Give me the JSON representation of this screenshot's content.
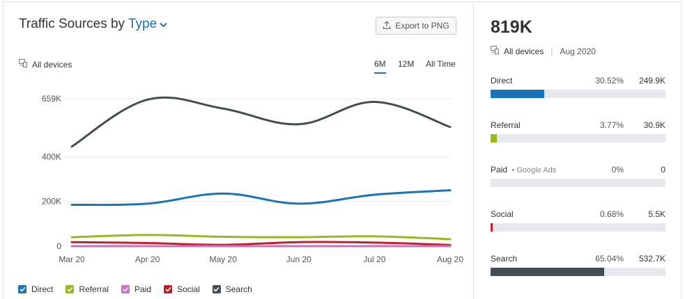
{
  "header": {
    "title": "Traffic Sources by",
    "type_select": "Type",
    "export_label": "Export to PNG",
    "devices_label": "All devices",
    "periods": [
      "6M",
      "12M",
      "All Time"
    ],
    "active_period": "6M"
  },
  "legend": [
    {
      "name": "Direct",
      "color": "#1a73b8"
    },
    {
      "name": "Referral",
      "color": "#97b81f"
    },
    {
      "name": "Paid",
      "color": "#c573c6"
    },
    {
      "name": "Social",
      "color": "#c0202a"
    },
    {
      "name": "Search",
      "color": "#434e53"
    }
  ],
  "chart_data": {
    "type": "line",
    "x": [
      "Mar 20",
      "Apr 20",
      "May 20",
      "Jun 20",
      "Jul 20",
      "Aug 20"
    ],
    "y_ticks": [
      "0",
      "200K",
      "400K",
      "659K"
    ],
    "y_tick_values": [
      0,
      200000,
      400000,
      659000
    ],
    "ylim": [
      0,
      659000
    ],
    "grid": true,
    "legend_position": "bottom",
    "series": [
      {
        "name": "Search",
        "color": "#434e53",
        "values": [
          445000,
          655000,
          615000,
          545000,
          645000,
          532700
        ]
      },
      {
        "name": "Direct",
        "color": "#1a73b8",
        "values": [
          185000,
          190000,
          235000,
          190000,
          230000,
          249900
        ]
      },
      {
        "name": "Referral",
        "color": "#97b81f",
        "values": [
          40000,
          50000,
          42000,
          40000,
          44000,
          30900
        ]
      },
      {
        "name": "Social",
        "color": "#c0202a",
        "values": [
          18000,
          14000,
          6000,
          18000,
          16000,
          5500
        ]
      },
      {
        "name": "Paid",
        "color": "#c573c6",
        "values": [
          0,
          0,
          0,
          0,
          0,
          0
        ]
      }
    ]
  },
  "summary": {
    "total": "819K",
    "devices_label": "All devices",
    "date": "Aug 2020",
    "rows": [
      {
        "name": "Direct",
        "sub": "",
        "pct": "30.52%",
        "value": "249.9K",
        "share": 0.3052,
        "color": "#1a73b8"
      },
      {
        "name": "Referral",
        "sub": "",
        "pct": "3.77%",
        "value": "30.9K",
        "share": 0.0377,
        "color": "#97b81f"
      },
      {
        "name": "Paid",
        "sub": "Google Ads",
        "pct": "0%",
        "value": "0",
        "share": 0,
        "color": "#c573c6"
      },
      {
        "name": "Social",
        "sub": "",
        "pct": "0.68%",
        "value": "5.5K",
        "share": 0.0068,
        "color": "#c0202a"
      },
      {
        "name": "Search",
        "sub": "",
        "pct": "65.04%",
        "value": "532.7K",
        "share": 0.6504,
        "color": "#434e53"
      }
    ]
  }
}
